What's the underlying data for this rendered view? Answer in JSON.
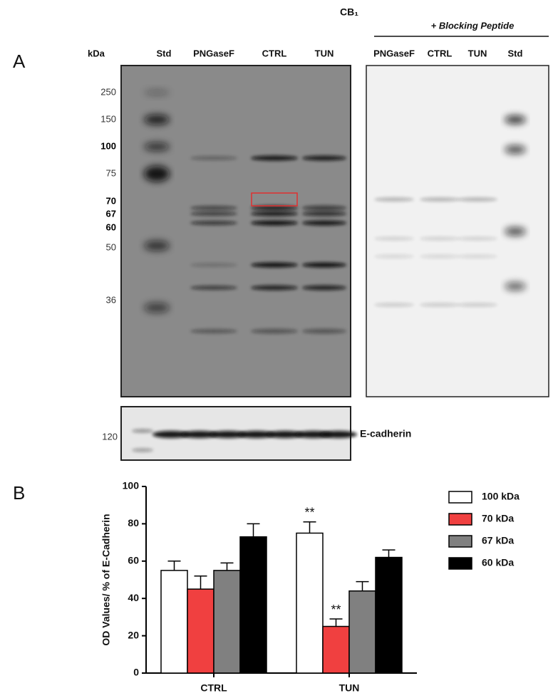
{
  "panel_a": {
    "label": "A",
    "title": "CB₁",
    "blocking": "+ Blocking Peptide",
    "kda": "kDa",
    "lanes_left": [
      "Std",
      "PNGaseF",
      "CTRL",
      "TUN"
    ],
    "lanes_right": [
      "PNGaseF",
      "CTRL",
      "TUN",
      "Std"
    ],
    "markers": [
      "250",
      "150",
      "100",
      "75",
      "70",
      "67",
      "60",
      "50",
      "36"
    ],
    "loading_marker": "120",
    "loading_label": "E-cadherin"
  },
  "chart_data": {
    "type": "bar",
    "panel_label": "B",
    "ylabel": "OD Values/ % of E-Cadherin",
    "categories": [
      "CTRL",
      "TUN"
    ],
    "series": [
      {
        "name": "100 kDa",
        "color": "#ffffff",
        "values": [
          55,
          75
        ],
        "errors": [
          5,
          6
        ],
        "significance": [
          null,
          "**"
        ]
      },
      {
        "name": "70 kDa",
        "color": "#f04040",
        "values": [
          45,
          25
        ],
        "errors": [
          7,
          4
        ],
        "significance": [
          null,
          "**"
        ]
      },
      {
        "name": "67 kDa",
        "color": "#808080",
        "values": [
          55,
          44
        ],
        "errors": [
          4,
          5
        ],
        "significance": [
          null,
          null
        ]
      },
      {
        "name": "60 kDa",
        "color": "#000000",
        "values": [
          73,
          62
        ],
        "errors": [
          7,
          4
        ],
        "significance": [
          null,
          null
        ]
      }
    ],
    "ylim": [
      0,
      100
    ],
    "yticks": [
      0,
      20,
      40,
      60,
      80,
      100
    ]
  }
}
